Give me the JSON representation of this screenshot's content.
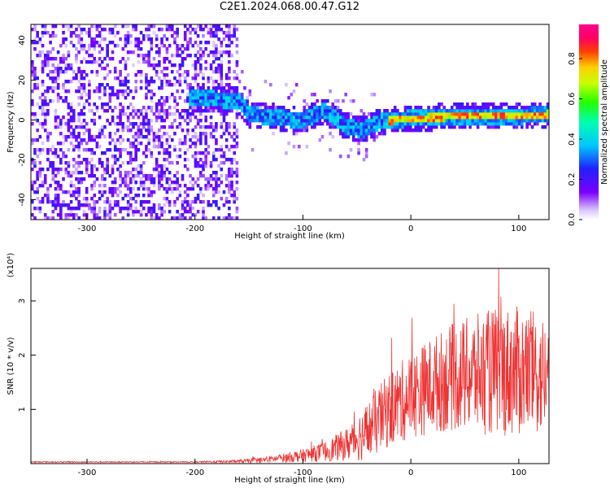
{
  "title": "C2E1.2024.068.00.47.G12",
  "chart_data": [
    {
      "type": "heatmap",
      "xlabel": "Height of straight line (km)",
      "ylabel": "Frequency (Hz)",
      "xlim": [
        -352,
        128
      ],
      "ylim": [
        -50,
        48
      ],
      "x_ticks": [
        -300,
        -200,
        -100,
        0,
        100
      ],
      "y_ticks": [
        -40,
        -20,
        0,
        20,
        40
      ],
      "colorbar": {
        "label": "Normalized spectral amplitude",
        "range": [
          0,
          0.97
        ],
        "ticks": [
          "0.0",
          "0.2",
          "0.4",
          "0.6",
          "0.8"
        ],
        "tick_values": [
          0,
          0.2,
          0.4,
          0.6,
          0.8
        ],
        "colormap": "rainbow (violet-blue-cyan-green-yellow-red-magenta)"
      },
      "ridge": {
        "description": "dominant spectral line",
        "points": [
          [
            -200,
            11
          ],
          [
            -160,
            10
          ],
          [
            -150,
            3
          ],
          [
            -120,
            1
          ],
          [
            -100,
            0
          ],
          [
            -80,
            5
          ],
          [
            -60,
            -3
          ],
          [
            -45,
            -5
          ],
          [
            -30,
            -1
          ],
          [
            0,
            1
          ],
          [
            50,
            2
          ],
          [
            100,
            2
          ],
          [
            128,
            3
          ]
        ]
      },
      "noise_region": {
        "x_from": -352,
        "x_to": -160,
        "level": 0.2
      }
    },
    {
      "type": "line",
      "xlabel": "Height of straight line (km)",
      "ylabel": "SNR (10 * v/v)",
      "y_scale_note": "(x10⁴)",
      "xlim": [
        -352,
        128
      ],
      "ylim": [
        0,
        3.6
      ],
      "x_ticks": [
        -300,
        -200,
        -100,
        0,
        100
      ],
      "y_ticks": [
        1,
        2,
        3
      ],
      "line_color": "#ee3333",
      "envelope": {
        "x": [
          -352,
          -300,
          -200,
          -160,
          -140,
          -120,
          -100,
          -80,
          -60,
          -40,
          -20,
          0,
          20,
          40,
          60,
          80,
          100,
          128
        ],
        "mean": [
          0.03,
          0.03,
          0.03,
          0.04,
          0.06,
          0.1,
          0.15,
          0.22,
          0.35,
          0.6,
          1.0,
          1.25,
          1.45,
          1.6,
          1.65,
          1.7,
          1.7,
          1.6
        ],
        "amplitude": [
          0.01,
          0.01,
          0.01,
          0.03,
          0.05,
          0.08,
          0.12,
          0.18,
          0.3,
          0.55,
          0.7,
          0.8,
          0.9,
          1.0,
          1.1,
          1.2,
          1.2,
          1.1
        ]
      }
    }
  ]
}
